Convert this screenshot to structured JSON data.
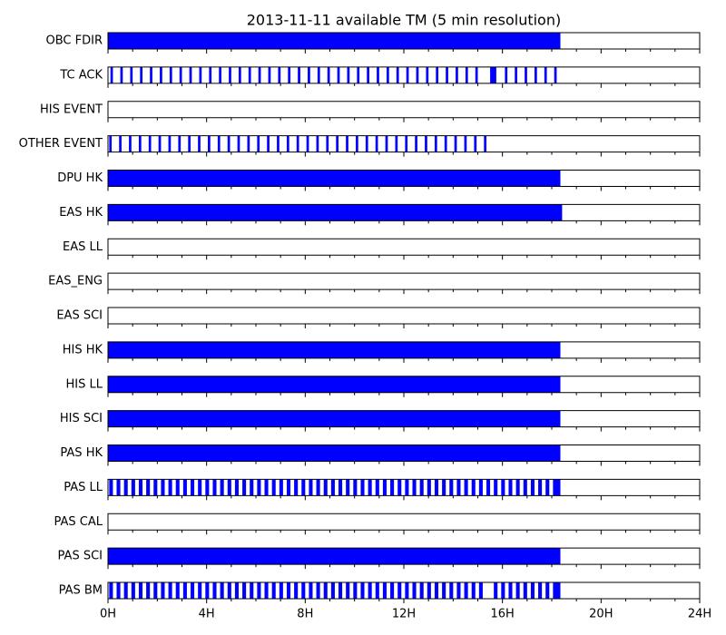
{
  "chart_data": {
    "type": "timeline",
    "title": "2013-11-11 available TM (5 min resolution)",
    "color": "#0000ff",
    "xlim": [
      0,
      24
    ],
    "xticks": [
      {
        "value": 0,
        "label": "0H"
      },
      {
        "value": 4,
        "label": "4H"
      },
      {
        "value": 8,
        "label": "8H"
      },
      {
        "value": 12,
        "label": "12H"
      },
      {
        "value": 16,
        "label": "16H"
      },
      {
        "value": 20,
        "label": "20H"
      },
      {
        "value": 24,
        "label": "24H"
      }
    ],
    "xminorticks": [
      1,
      2,
      3,
      5,
      6,
      7,
      9,
      10,
      11,
      13,
      14,
      15,
      17,
      18,
      19,
      21,
      22,
      23
    ],
    "rows": [
      {
        "name": "OBC FDIR",
        "intervals": [
          [
            0,
            18.35
          ]
        ]
      },
      {
        "name": "TC ACK",
        "intervals": [
          [
            0.1,
            0.2
          ],
          [
            0.5,
            0.6
          ],
          [
            0.9,
            1.0
          ],
          [
            1.3,
            1.4
          ],
          [
            1.7,
            1.8
          ],
          [
            2.1,
            2.2
          ],
          [
            2.5,
            2.6
          ],
          [
            2.9,
            3.0
          ],
          [
            3.3,
            3.4
          ],
          [
            3.7,
            3.8
          ],
          [
            4.1,
            4.2
          ],
          [
            4.5,
            4.6
          ],
          [
            4.9,
            5.0
          ],
          [
            5.3,
            5.4
          ],
          [
            5.7,
            5.8
          ],
          [
            6.1,
            6.2
          ],
          [
            6.5,
            6.6
          ],
          [
            6.9,
            7.0
          ],
          [
            7.3,
            7.4
          ],
          [
            7.7,
            7.8
          ],
          [
            8.1,
            8.2
          ],
          [
            8.5,
            8.6
          ],
          [
            8.9,
            9.0
          ],
          [
            9.3,
            9.4
          ],
          [
            9.7,
            9.8
          ],
          [
            10.1,
            10.2
          ],
          [
            10.5,
            10.6
          ],
          [
            10.9,
            11.0
          ],
          [
            11.3,
            11.4
          ],
          [
            11.7,
            11.8
          ],
          [
            12.1,
            12.2
          ],
          [
            12.5,
            12.6
          ],
          [
            12.9,
            13.0
          ],
          [
            13.3,
            13.4
          ],
          [
            13.7,
            13.8
          ],
          [
            14.1,
            14.2
          ],
          [
            14.5,
            14.6
          ],
          [
            14.9,
            15.0
          ],
          [
            15.5,
            15.75
          ],
          [
            16.1,
            16.2
          ],
          [
            16.5,
            16.6
          ],
          [
            16.9,
            17.0
          ],
          [
            17.3,
            17.4
          ],
          [
            17.7,
            17.8
          ],
          [
            18.1,
            18.2
          ]
        ]
      },
      {
        "name": "HIS EVENT",
        "intervals": []
      },
      {
        "name": "OTHER EVENT",
        "intervals": [
          [
            0.05,
            0.15
          ],
          [
            0.45,
            0.55
          ],
          [
            0.85,
            0.95
          ],
          [
            1.25,
            1.35
          ],
          [
            1.65,
            1.75
          ],
          [
            2.05,
            2.15
          ],
          [
            2.45,
            2.55
          ],
          [
            2.85,
            2.95
          ],
          [
            3.25,
            3.35
          ],
          [
            3.65,
            3.75
          ],
          [
            4.05,
            4.15
          ],
          [
            4.45,
            4.55
          ],
          [
            4.85,
            4.95
          ],
          [
            5.25,
            5.35
          ],
          [
            5.65,
            5.75
          ],
          [
            6.05,
            6.15
          ],
          [
            6.45,
            6.55
          ],
          [
            6.85,
            6.95
          ],
          [
            7.25,
            7.35
          ],
          [
            7.65,
            7.75
          ],
          [
            8.05,
            8.15
          ],
          [
            8.45,
            8.55
          ],
          [
            8.85,
            8.95
          ],
          [
            9.25,
            9.35
          ],
          [
            9.65,
            9.75
          ],
          [
            10.05,
            10.15
          ],
          [
            10.45,
            10.55
          ],
          [
            10.85,
            10.95
          ],
          [
            11.25,
            11.35
          ],
          [
            11.65,
            11.75
          ],
          [
            12.05,
            12.15
          ],
          [
            12.45,
            12.55
          ],
          [
            12.85,
            12.95
          ],
          [
            13.25,
            13.35
          ],
          [
            13.65,
            13.75
          ],
          [
            14.05,
            14.15
          ],
          [
            14.45,
            14.55
          ],
          [
            14.85,
            14.95
          ],
          [
            15.25,
            15.35
          ]
        ]
      },
      {
        "name": "DPU HK",
        "intervals": [
          [
            0,
            18.35
          ]
        ]
      },
      {
        "name": "EAS HK",
        "intervals": [
          [
            0,
            18.42
          ]
        ]
      },
      {
        "name": "EAS LL",
        "intervals": []
      },
      {
        "name": "EAS_ENG",
        "intervals": []
      },
      {
        "name": "EAS SCI",
        "intervals": []
      },
      {
        "name": "HIS HK",
        "intervals": [
          [
            0,
            18.35
          ]
        ]
      },
      {
        "name": "HIS LL",
        "intervals": [
          [
            0,
            18.35
          ]
        ]
      },
      {
        "name": "HIS SCI",
        "intervals": [
          [
            0,
            18.35
          ]
        ]
      },
      {
        "name": "PAS HK",
        "intervals": [
          [
            0,
            18.35
          ]
        ]
      },
      {
        "name": "PAS LL",
        "intervals": [
          [
            0.05,
            0.2
          ],
          [
            0.35,
            0.5
          ],
          [
            0.65,
            0.8
          ],
          [
            0.95,
            1.1
          ],
          [
            1.25,
            1.4
          ],
          [
            1.55,
            1.7
          ],
          [
            1.85,
            2.0
          ],
          [
            2.15,
            2.3
          ],
          [
            2.45,
            2.6
          ],
          [
            2.75,
            2.9
          ],
          [
            3.05,
            3.2
          ],
          [
            3.35,
            3.5
          ],
          [
            3.65,
            3.8
          ],
          [
            3.95,
            4.1
          ],
          [
            4.25,
            4.4
          ],
          [
            4.55,
            4.7
          ],
          [
            4.85,
            5.0
          ],
          [
            5.15,
            5.3
          ],
          [
            5.45,
            5.6
          ],
          [
            5.75,
            5.9
          ],
          [
            6.05,
            6.2
          ],
          [
            6.35,
            6.5
          ],
          [
            6.65,
            6.8
          ],
          [
            6.95,
            7.1
          ],
          [
            7.25,
            7.4
          ],
          [
            7.55,
            7.7
          ],
          [
            7.85,
            8.0
          ],
          [
            8.15,
            8.3
          ],
          [
            8.45,
            8.6
          ],
          [
            8.75,
            8.9
          ],
          [
            9.05,
            9.2
          ],
          [
            9.35,
            9.5
          ],
          [
            9.65,
            9.8
          ],
          [
            9.95,
            10.1
          ],
          [
            10.25,
            10.4
          ],
          [
            10.55,
            10.7
          ],
          [
            10.85,
            11.0
          ],
          [
            11.15,
            11.3
          ],
          [
            11.45,
            11.6
          ],
          [
            11.75,
            11.9
          ],
          [
            12.05,
            12.2
          ],
          [
            12.35,
            12.5
          ],
          [
            12.65,
            12.8
          ],
          [
            12.95,
            13.1
          ],
          [
            13.25,
            13.4
          ],
          [
            13.55,
            13.7
          ],
          [
            13.85,
            14.0
          ],
          [
            14.15,
            14.3
          ],
          [
            14.45,
            14.6
          ],
          [
            14.75,
            14.9
          ],
          [
            15.05,
            15.2
          ],
          [
            15.35,
            15.5
          ],
          [
            15.65,
            15.8
          ],
          [
            15.95,
            16.1
          ],
          [
            16.25,
            16.4
          ],
          [
            16.55,
            16.7
          ],
          [
            16.85,
            17.0
          ],
          [
            17.15,
            17.3
          ],
          [
            17.45,
            17.6
          ],
          [
            17.75,
            17.9
          ],
          [
            18.05,
            18.35
          ]
        ]
      },
      {
        "name": "PAS CAL",
        "intervals": []
      },
      {
        "name": "PAS SCI",
        "intervals": [
          [
            0,
            18.35
          ]
        ]
      },
      {
        "name": "PAS BM",
        "intervals": [
          [
            0.05,
            0.2
          ],
          [
            0.35,
            0.5
          ],
          [
            0.65,
            0.8
          ],
          [
            0.95,
            1.1
          ],
          [
            1.25,
            1.4
          ],
          [
            1.55,
            1.7
          ],
          [
            1.85,
            2.0
          ],
          [
            2.15,
            2.3
          ],
          [
            2.45,
            2.6
          ],
          [
            2.75,
            2.9
          ],
          [
            3.05,
            3.2
          ],
          [
            3.35,
            3.5
          ],
          [
            3.65,
            3.8
          ],
          [
            3.95,
            4.1
          ],
          [
            4.25,
            4.4
          ],
          [
            4.55,
            4.7
          ],
          [
            4.85,
            5.0
          ],
          [
            5.15,
            5.3
          ],
          [
            5.45,
            5.6
          ],
          [
            5.75,
            5.9
          ],
          [
            6.05,
            6.2
          ],
          [
            6.35,
            6.5
          ],
          [
            6.65,
            6.8
          ],
          [
            6.95,
            7.1
          ],
          [
            7.25,
            7.4
          ],
          [
            7.55,
            7.7
          ],
          [
            7.85,
            8.0
          ],
          [
            8.15,
            8.3
          ],
          [
            8.45,
            8.6
          ],
          [
            8.75,
            8.9
          ],
          [
            9.05,
            9.2
          ],
          [
            9.35,
            9.5
          ],
          [
            9.65,
            9.8
          ],
          [
            9.95,
            10.1
          ],
          [
            10.25,
            10.4
          ],
          [
            10.55,
            10.7
          ],
          [
            10.85,
            11.0
          ],
          [
            11.15,
            11.3
          ],
          [
            11.45,
            11.6
          ],
          [
            11.75,
            11.9
          ],
          [
            12.05,
            12.2
          ],
          [
            12.35,
            12.5
          ],
          [
            12.65,
            12.8
          ],
          [
            12.95,
            13.1
          ],
          [
            13.25,
            13.4
          ],
          [
            13.55,
            13.7
          ],
          [
            13.85,
            14.0
          ],
          [
            14.15,
            14.3
          ],
          [
            14.45,
            14.6
          ],
          [
            14.75,
            14.9
          ],
          [
            15.05,
            15.2
          ],
          [
            15.65,
            15.8
          ],
          [
            15.95,
            16.1
          ],
          [
            16.25,
            16.4
          ],
          [
            16.55,
            16.7
          ],
          [
            16.85,
            17.0
          ],
          [
            17.15,
            17.3
          ],
          [
            17.45,
            17.6
          ],
          [
            17.75,
            17.9
          ],
          [
            18.05,
            18.35
          ]
        ]
      }
    ]
  }
}
